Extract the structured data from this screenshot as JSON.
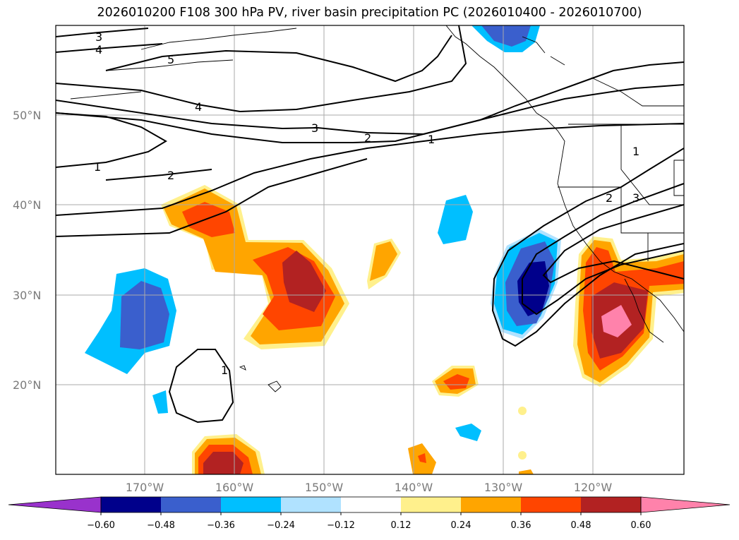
{
  "title": "2026010200 F108 300 hPa PV, river basin precipitation PC (2026010400 - 2026010700)",
  "map": {
    "lat_labels": [
      "50°N",
      "40°N",
      "30°N",
      "20°N"
    ],
    "lon_labels": [
      "170°W",
      "160°W",
      "150°W",
      "140°W",
      "130°W",
      "120°W"
    ],
    "grid": true,
    "pv_contour_labels": [
      "3",
      "4",
      "5",
      "4",
      "3",
      "2",
      "1",
      "1",
      "2",
      "1",
      "1",
      "2",
      "3"
    ]
  },
  "colorbar": {
    "ticks": [
      "−0.60",
      "−0.48",
      "−0.36",
      "−0.24",
      "−0.12",
      "0.12",
      "0.24",
      "0.36",
      "0.48",
      "0.60"
    ],
    "colors": [
      "#9932cc",
      "#00008b",
      "#3a5fcd",
      "#00bfff",
      "#b0e2ff",
      "#ffffff",
      "#fff08c",
      "#ffa500",
      "#ff4500",
      "#b22222",
      "#ff82ab"
    ]
  }
}
